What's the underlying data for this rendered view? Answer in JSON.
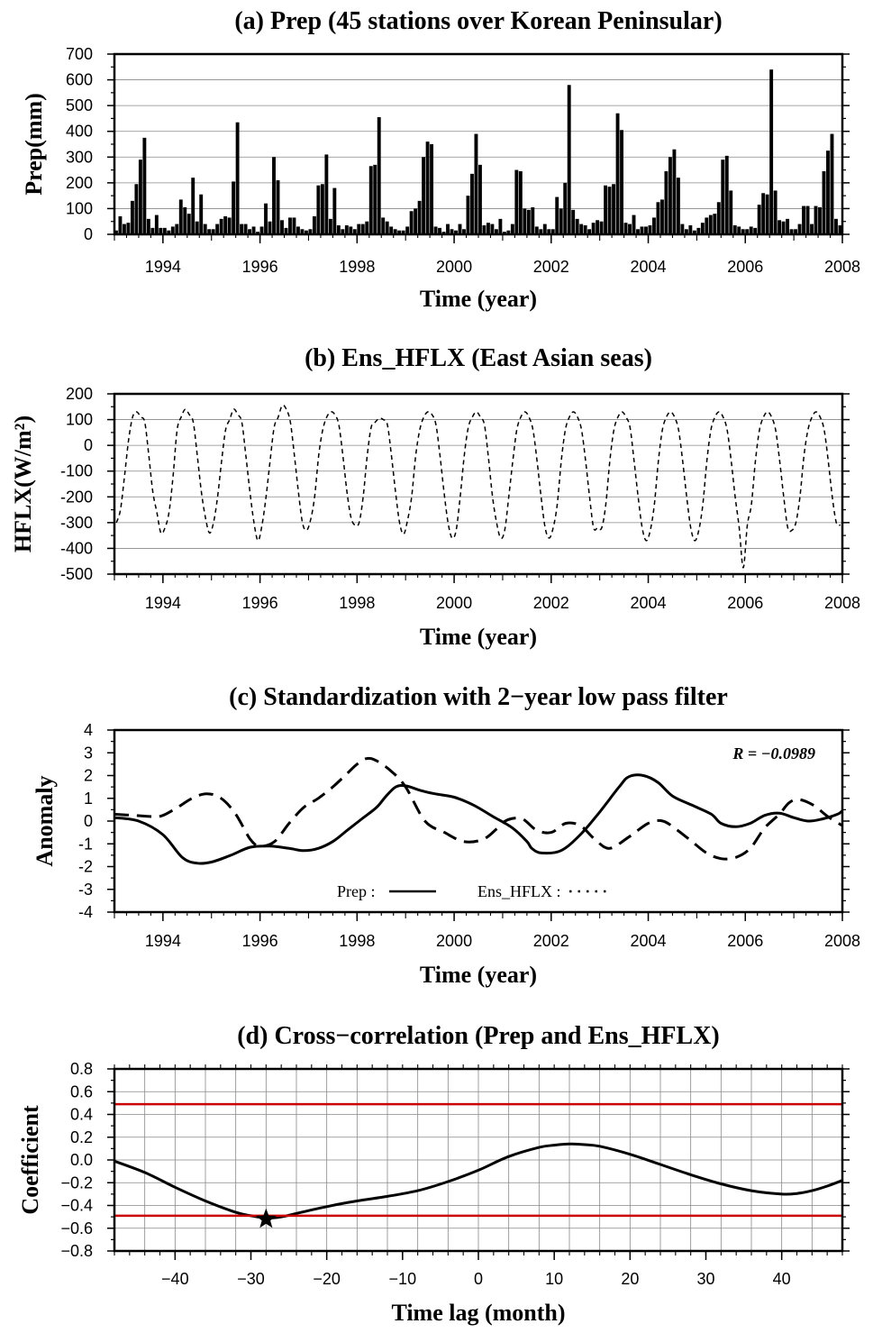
{
  "chart_data": [
    {
      "type": "bar",
      "title": "(a) Prep (45 stations over Korean Peninsular)",
      "xlabel": "Time (year)",
      "ylabel": "Prep(mm)",
      "xlim": [
        1993,
        2008
      ],
      "ylim": [
        0,
        700
      ],
      "x_ticks": [
        "1994",
        "1996",
        "1998",
        "2000",
        "2002",
        "2004",
        "2006",
        "2008"
      ],
      "y_ticks": [
        "0",
        "100",
        "200",
        "300",
        "400",
        "500",
        "600",
        "700"
      ],
      "grid": "horizontal",
      "x_start": "1993-01",
      "step": "monthly",
      "values": [
        15,
        70,
        40,
        45,
        130,
        195,
        290,
        375,
        60,
        25,
        75,
        25,
        25,
        15,
        30,
        40,
        135,
        105,
        80,
        220,
        50,
        155,
        40,
        20,
        20,
        40,
        60,
        70,
        65,
        205,
        435,
        40,
        40,
        20,
        30,
        10,
        30,
        120,
        50,
        300,
        210,
        55,
        25,
        65,
        65,
        30,
        20,
        15,
        20,
        70,
        190,
        195,
        310,
        60,
        180,
        35,
        20,
        35,
        30,
        20,
        40,
        40,
        50,
        265,
        270,
        455,
        65,
        50,
        30,
        20,
        15,
        15,
        30,
        90,
        100,
        130,
        300,
        360,
        350,
        30,
        25,
        10,
        40,
        20,
        15,
        40,
        20,
        150,
        235,
        390,
        270,
        35,
        45,
        40,
        20,
        60,
        10,
        15,
        40,
        250,
        245,
        100,
        95,
        105,
        30,
        20,
        40,
        20,
        20,
        145,
        100,
        200,
        580,
        95,
        60,
        40,
        35,
        20,
        45,
        55,
        50,
        190,
        185,
        195,
        470,
        405,
        45,
        40,
        75,
        20,
        30,
        30,
        35,
        65,
        125,
        135,
        245,
        300,
        330,
        220,
        40,
        20,
        35,
        15,
        25,
        45,
        65,
        75,
        80,
        125,
        290,
        305,
        170,
        35,
        30,
        20,
        20,
        30,
        25,
        115,
        160,
        155,
        640,
        170,
        55,
        50,
        60,
        20,
        20,
        40,
        110,
        110,
        40,
        110,
        105,
        245,
        325,
        390,
        60,
        35
      ]
    },
    {
      "type": "line",
      "title": "(b) Ens_HFLX (East Asian seas)",
      "xlabel": "Time (year)",
      "ylabel": "HFLX(W/m²)",
      "xlim": [
        1993,
        2008
      ],
      "ylim": [
        -500,
        200
      ],
      "x_ticks": [
        "1994",
        "1996",
        "1998",
        "2000",
        "2002",
        "2004",
        "2006",
        "2008"
      ],
      "y_ticks": [
        "-500",
        "-400",
        "-300",
        "-200",
        "-100",
        "0",
        "100",
        "200"
      ],
      "grid": "horizontal",
      "x_start": "1993-01",
      "step": "monthly",
      "series": [
        {
          "style": "dashed",
          "values": [
            -300,
            -250,
            -120,
            20,
            110,
            130,
            110,
            90,
            -40,
            -180,
            -260,
            -340,
            -320,
            -260,
            -120,
            60,
            110,
            140,
            120,
            90,
            -40,
            -180,
            -280,
            -340,
            -300,
            -200,
            -60,
            60,
            100,
            140,
            120,
            90,
            -40,
            -180,
            -300,
            -370,
            -310,
            -200,
            -60,
            70,
            110,
            155,
            140,
            90,
            -40,
            -180,
            -300,
            -330,
            -290,
            -200,
            -40,
            60,
            110,
            130,
            120,
            80,
            -40,
            -180,
            -280,
            -310,
            -300,
            -200,
            -40,
            70,
            90,
            105,
            100,
            80,
            -40,
            -180,
            -300,
            -345,
            -290,
            -200,
            -40,
            60,
            110,
            130,
            120,
            80,
            -40,
            -180,
            -300,
            -360,
            -330,
            -200,
            -40,
            70,
            110,
            130,
            110,
            80,
            -50,
            -200,
            -300,
            -360,
            -330,
            -200,
            -60,
            60,
            110,
            130,
            110,
            60,
            -60,
            -200,
            -320,
            -360,
            -320,
            -230,
            -60,
            60,
            110,
            130,
            110,
            60,
            -60,
            -200,
            -320,
            -320,
            -320,
            -230,
            -60,
            60,
            110,
            130,
            110,
            70,
            -60,
            -200,
            -320,
            -370,
            -330,
            -230,
            -60,
            60,
            110,
            130,
            110,
            60,
            -60,
            -200,
            -320,
            -370,
            -330,
            -230,
            -60,
            60,
            110,
            130,
            110,
            60,
            -60,
            -200,
            -320,
            -475,
            -310,
            -230,
            -60,
            60,
            110,
            130,
            110,
            60,
            -60,
            -200,
            -320,
            -330,
            -300,
            -200,
            -40,
            60,
            110,
            130,
            110,
            60,
            -60,
            -200,
            -300,
            -310
          ]
        }
      ]
    },
    {
      "type": "line",
      "title": "(c) Standardization with 2−year low pass filter",
      "xlabel": "Time (year)",
      "ylabel": "Anomaly",
      "xlim": [
        1993,
        2008
      ],
      "ylim": [
        -4,
        4
      ],
      "x_ticks": [
        "1994",
        "1996",
        "1998",
        "2000",
        "2002",
        "2004",
        "2006",
        "2008"
      ],
      "y_ticks": [
        "-4",
        "-3",
        "-2",
        "-1",
        "0",
        "1",
        "2",
        "3",
        "4"
      ],
      "grid": "none",
      "annotation": "R = −0.0989",
      "legend_position": "bottom-center",
      "series": [
        {
          "name": "Prep :",
          "style": "solid",
          "x": [
            1993.0,
            1993.5,
            1994.0,
            1994.4,
            1994.7,
            1995.0,
            1995.4,
            1995.8,
            1996.2,
            1996.6,
            1996.9,
            1997.2,
            1997.5,
            1997.8,
            1998.1,
            1998.4,
            1998.6,
            1998.8,
            1999.0,
            1999.3,
            1999.6,
            2000.0,
            2000.4,
            2000.8,
            2001.2,
            2001.5,
            2001.6,
            2001.8,
            2002.2,
            2002.6,
            2003.0,
            2003.4,
            2003.6,
            2003.9,
            2004.2,
            2004.5,
            2004.9,
            2005.3,
            2005.5,
            2005.8,
            2006.1,
            2006.4,
            2006.7,
            2007.0,
            2007.3,
            2007.6,
            2007.9,
            2008.0
          ],
          "y": [
            0.15,
            0.0,
            -0.6,
            -1.6,
            -1.85,
            -1.8,
            -1.5,
            -1.15,
            -1.1,
            -1.2,
            -1.3,
            -1.2,
            -0.9,
            -0.4,
            0.1,
            0.6,
            1.1,
            1.5,
            1.55,
            1.35,
            1.2,
            1.05,
            0.7,
            0.2,
            -0.3,
            -0.9,
            -1.2,
            -1.4,
            -1.3,
            -0.6,
            0.4,
            1.5,
            1.95,
            2.0,
            1.7,
            1.1,
            0.7,
            0.3,
            -0.1,
            -0.25,
            -0.1,
            0.25,
            0.35,
            0.15,
            0.0,
            0.1,
            0.3,
            0.45
          ]
        },
        {
          "name": "Ens_HFLX :",
          "style": "dashed",
          "x": [
            1993.0,
            1993.4,
            1993.8,
            1994.0,
            1994.3,
            1994.6,
            1994.9,
            1995.2,
            1995.5,
            1995.8,
            1996.0,
            1996.3,
            1996.6,
            1996.9,
            1997.2,
            1997.5,
            1997.8,
            1998.0,
            1998.2,
            1998.4,
            1998.7,
            1999.0,
            1999.4,
            1999.8,
            2000.2,
            2000.6,
            2000.9,
            2001.1,
            2001.4,
            2001.7,
            2002.0,
            2002.3,
            2002.6,
            2002.9,
            2003.2,
            2003.6,
            2004.0,
            2004.3,
            2004.6,
            2004.9,
            2005.2,
            2005.5,
            2005.8,
            2006.1,
            2006.4,
            2006.7,
            2006.9,
            2007.1,
            2007.4,
            2007.7,
            2008.0
          ],
          "y": [
            0.3,
            0.25,
            0.2,
            0.25,
            0.6,
            1.0,
            1.2,
            1.0,
            0.3,
            -0.8,
            -1.1,
            -0.9,
            -0.1,
            0.6,
            1.0,
            1.5,
            2.1,
            2.5,
            2.75,
            2.65,
            2.2,
            1.5,
            0.0,
            -0.5,
            -0.9,
            -0.8,
            -0.3,
            0.05,
            0.1,
            -0.4,
            -0.5,
            -0.1,
            -0.2,
            -0.8,
            -1.2,
            -0.7,
            -0.1,
            0.0,
            -0.4,
            -0.9,
            -1.4,
            -1.65,
            -1.6,
            -1.2,
            -0.3,
            0.3,
            0.8,
            0.95,
            0.7,
            0.2,
            -0.2
          ]
        }
      ]
    },
    {
      "type": "line",
      "title": "(d) Cross−correlation (Prep and Ens_HFLX)",
      "xlabel": "Time lag (month)",
      "ylabel": "Coefficient",
      "xlim": [
        -48,
        48
      ],
      "ylim": [
        -0.8,
        0.8
      ],
      "x_ticks": [
        "−40",
        "−30",
        "−20",
        "−10",
        "0",
        "10",
        "20",
        "30",
        "40"
      ],
      "y_ticks": [
        "−0.8",
        "−0.6",
        "−0.4",
        "−0.2",
        "0.0",
        "0.2",
        "0.4",
        "0.6",
        "0.8"
      ],
      "grid": "both",
      "significance_lines": [
        0.49,
        -0.49
      ],
      "significance_color": "#cc0000",
      "marker": {
        "symbol": "star",
        "x": -28,
        "y": -0.52
      },
      "series": [
        {
          "style": "solid",
          "x": [
            -48,
            -44,
            -40,
            -36,
            -32,
            -30,
            -28,
            -26,
            -24,
            -20,
            -16,
            -12,
            -8,
            -4,
            0,
            4,
            8,
            10,
            12,
            14,
            16,
            20,
            24,
            28,
            32,
            36,
            40,
            42,
            44,
            46,
            48
          ],
          "y": [
            -0.01,
            -0.11,
            -0.24,
            -0.36,
            -0.46,
            -0.49,
            -0.51,
            -0.5,
            -0.47,
            -0.41,
            -0.36,
            -0.32,
            -0.27,
            -0.19,
            -0.09,
            0.03,
            0.11,
            0.13,
            0.14,
            0.135,
            0.12,
            0.05,
            -0.04,
            -0.13,
            -0.21,
            -0.27,
            -0.3,
            -0.295,
            -0.27,
            -0.23,
            -0.18
          ]
        }
      ]
    }
  ]
}
